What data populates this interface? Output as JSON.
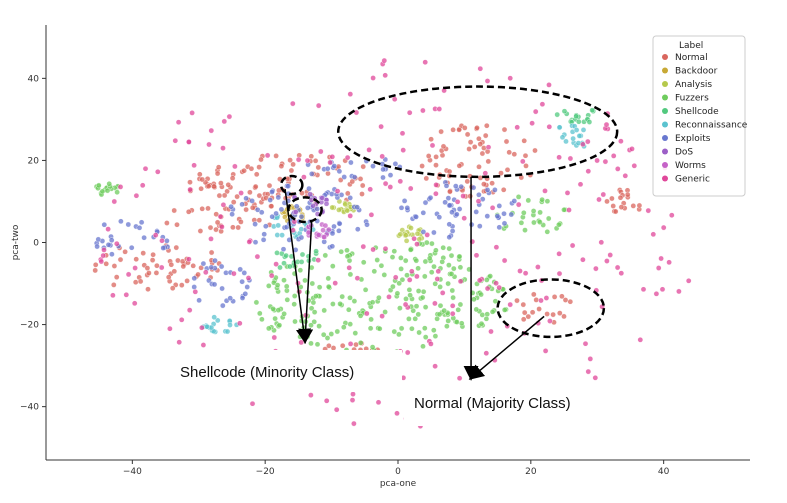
{
  "chart_data": {
    "type": "scatter",
    "title": "",
    "xlabel": "pca-one",
    "ylabel": "pca-two",
    "xlim": [
      -53,
      53
    ],
    "ylim": [
      -53,
      53
    ],
    "xticks": [
      -40,
      -20,
      0,
      20,
      40
    ],
    "yticks": [
      40,
      20,
      0,
      -20,
      -40
    ],
    "grid": false,
    "legend_title": "Label",
    "legend_position": "top-right",
    "series": [
      {
        "name": "Normal",
        "color": "#d9665e",
        "clusters": [
          [
            -16,
            15,
            13,
            7
          ],
          [
            12,
            20,
            9,
            9
          ],
          [
            -36,
            -6,
            10,
            6
          ],
          [
            -27,
            6,
            9,
            3.5
          ],
          [
            -28,
            14,
            4,
            3
          ],
          [
            22,
            -16,
            5,
            4
          ],
          [
            34,
            10,
            3,
            3
          ],
          [
            -7,
            -26,
            4,
            2
          ]
        ]
      },
      {
        "name": "Backdoor",
        "color": "#c8a935",
        "clusters": [
          [
            -16,
            7,
            2,
            2
          ]
        ]
      },
      {
        "name": "Analysis",
        "color": "#b5c94c",
        "clusters": [
          [
            -8,
            9,
            2,
            2
          ],
          [
            2,
            2,
            2,
            2
          ]
        ]
      },
      {
        "name": "Fuzzers",
        "color": "#6fcc5e",
        "clusters": [
          [
            -3,
            -14,
            20,
            13
          ],
          [
            20,
            7,
            6,
            5
          ],
          [
            -44,
            13,
            2,
            2
          ],
          [
            5,
            -3,
            5,
            3
          ]
        ]
      },
      {
        "name": "Shellcode",
        "color": "#52c97f",
        "clusters": [
          [
            -15,
            -4,
            4,
            3
          ],
          [
            27,
            31,
            4,
            2
          ]
        ]
      },
      {
        "name": "Reconnaissance",
        "color": "#5bc3cf",
        "clusters": [
          [
            -16,
            4,
            4,
            3
          ],
          [
            -27,
            -20,
            3,
            2
          ],
          [
            27,
            26,
            4,
            3
          ]
        ]
      },
      {
        "name": "Exploits",
        "color": "#6877cf",
        "clusters": [
          [
            -15,
            6,
            11,
            8
          ],
          [
            9,
            8,
            9,
            7
          ],
          [
            -40,
            1,
            6,
            5
          ],
          [
            -27,
            -10,
            5,
            6
          ],
          [
            -6,
            18,
            8,
            3
          ]
        ]
      },
      {
        "name": "DoS",
        "color": "#9c5fc7",
        "clusters": [
          [
            -14,
            9,
            4,
            3
          ]
        ]
      },
      {
        "name": "Worms",
        "color": "#c562c7",
        "clusters": [
          [
            -12,
            3,
            2,
            2
          ]
        ]
      },
      {
        "name": "Generic",
        "color": "#e0479a",
        "clusters": [
          [
            0,
            0,
            45,
            45
          ]
        ]
      }
    ]
  },
  "annotations": {
    "minority": "Shellcode (Minority Class)",
    "majority": "Normal (Majority Class)"
  }
}
